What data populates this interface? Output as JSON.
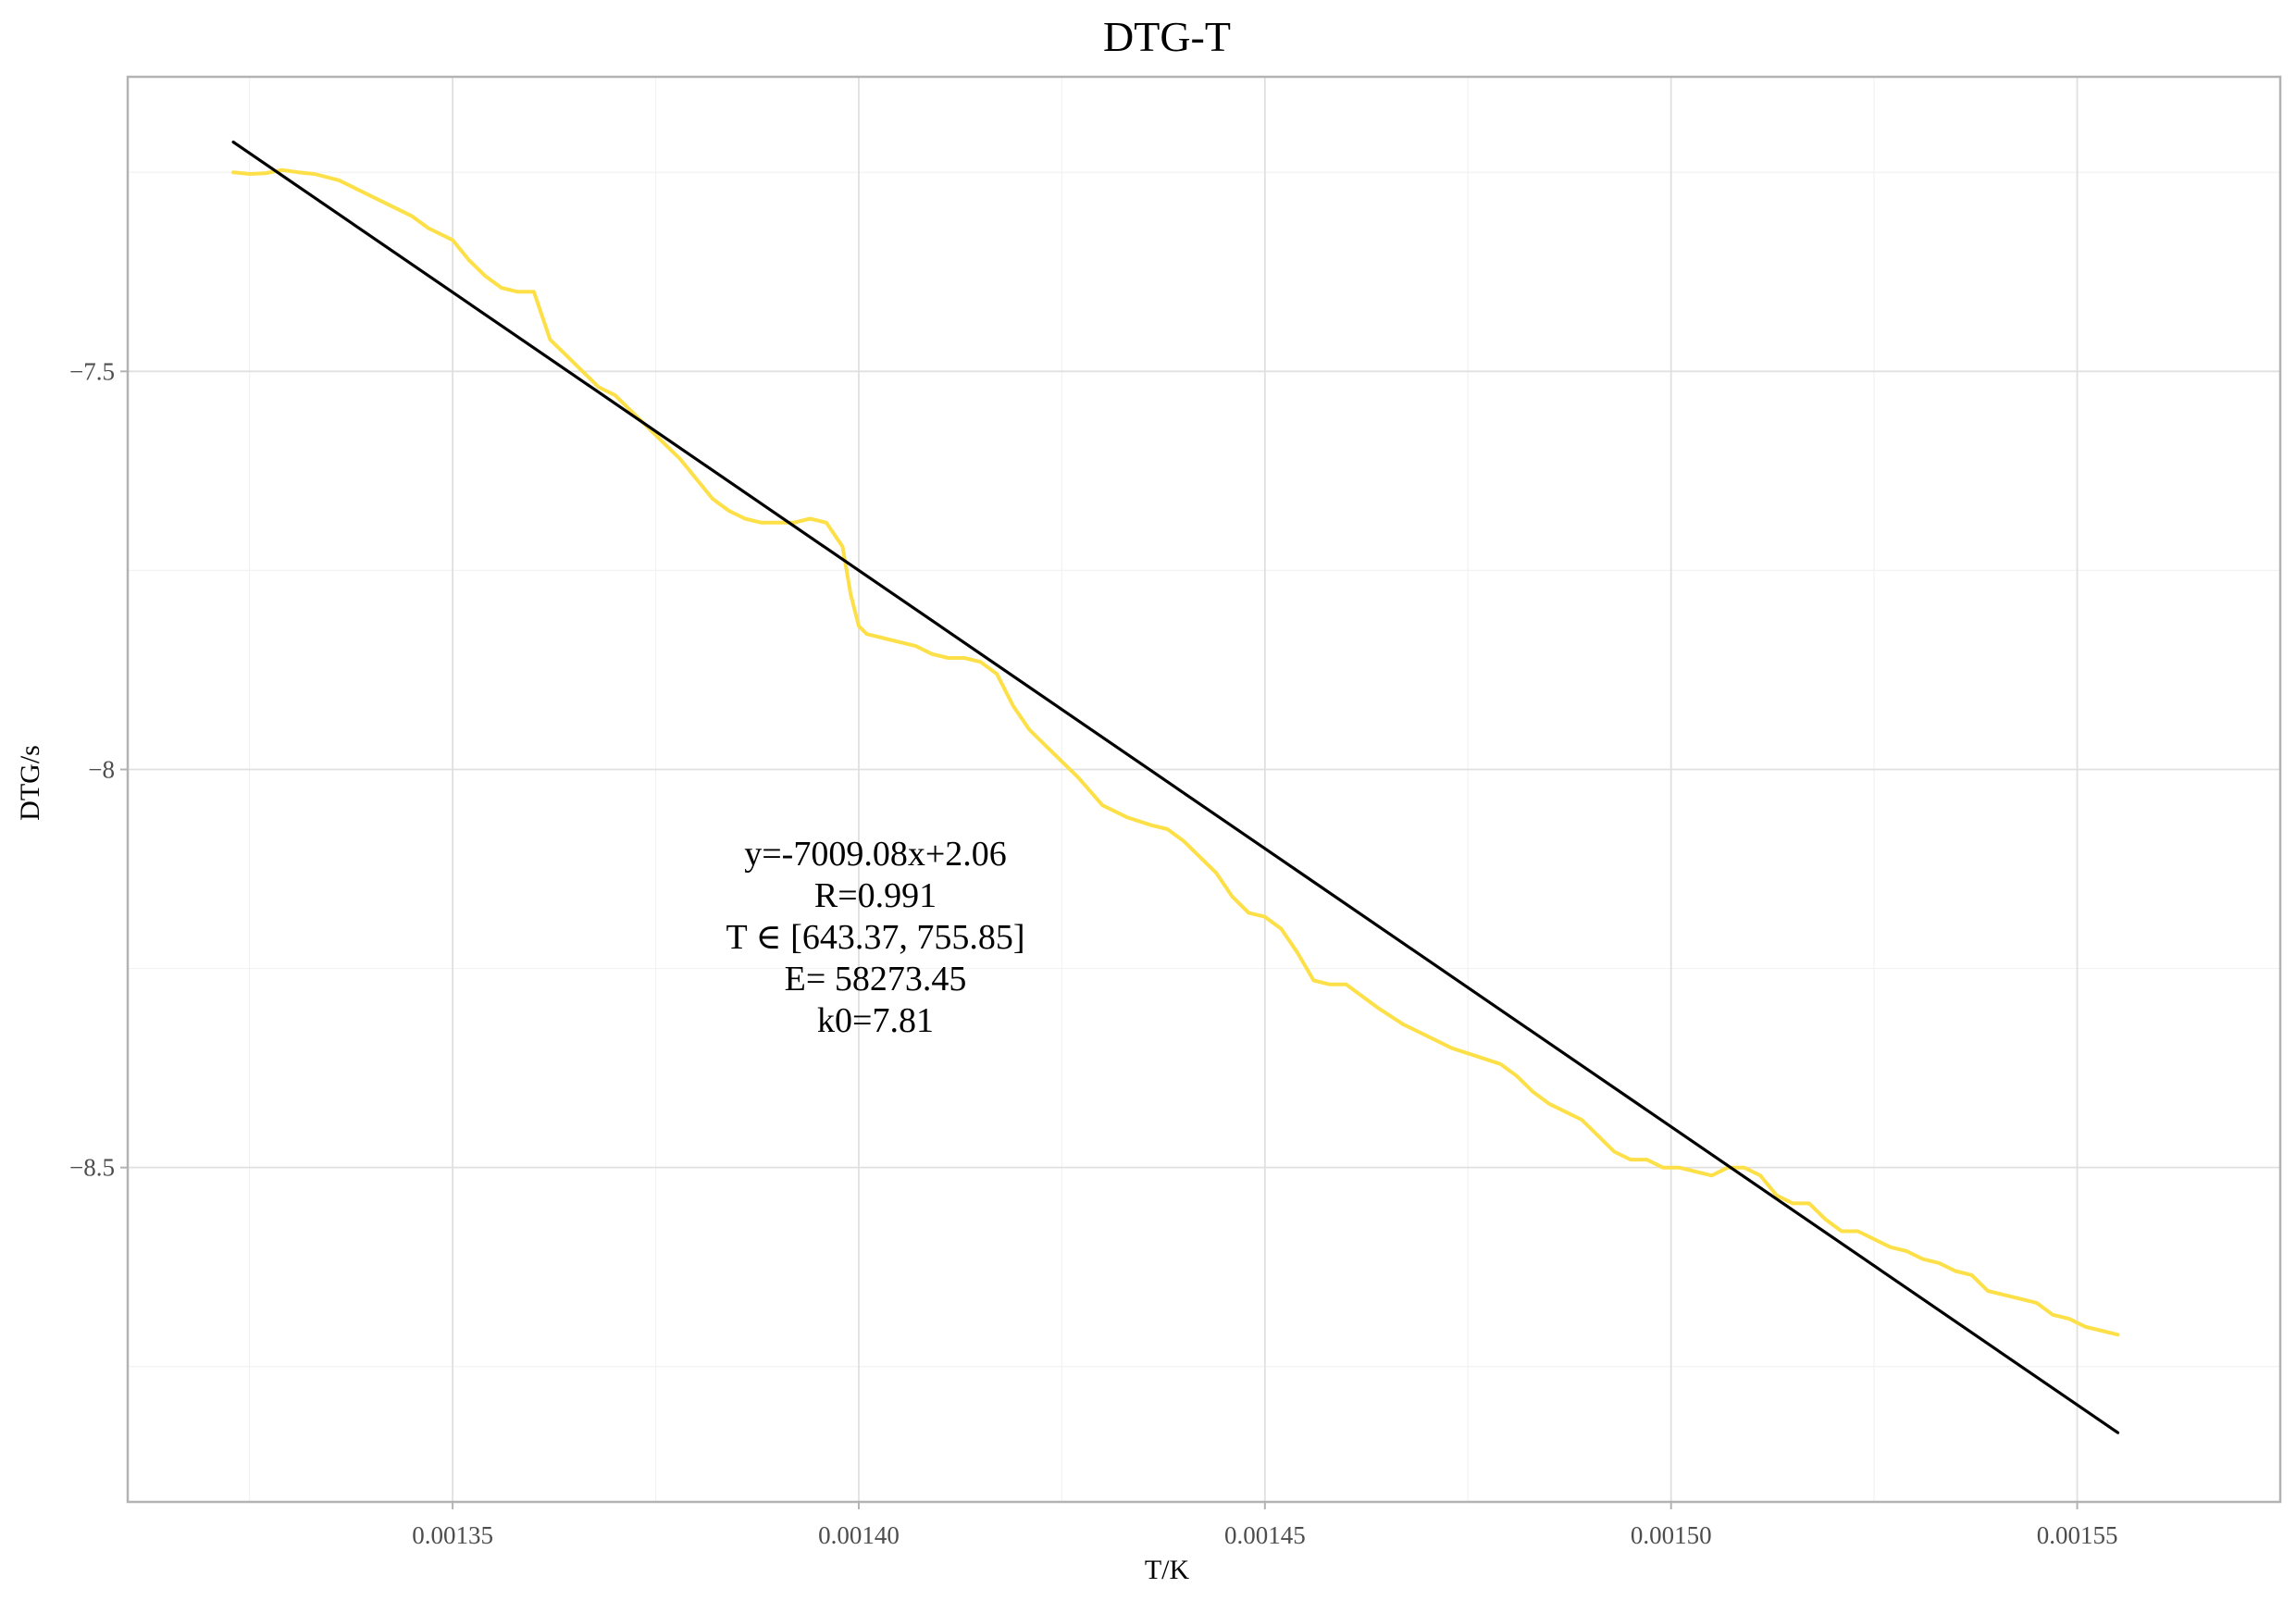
{
  "chart_data": {
    "type": "line",
    "title": "DTG-T",
    "xlabel": "T/K",
    "ylabel": "DTG/s",
    "xlim": [
      0.00131,
      0.001575
    ],
    "ylim": [
      -8.92,
      -7.13
    ],
    "x_ticks": [
      0.00135,
      0.0014,
      0.00145,
      0.0015,
      0.00155
    ],
    "x_tick_labels": [
      "0.00135",
      "0.00140",
      "0.00145",
      "0.00150",
      "0.00155"
    ],
    "y_ticks": [
      -8.5,
      -8,
      -7.5
    ],
    "y_tick_labels": [
      "−8.5",
      "−8",
      "−7.5"
    ],
    "grid": true,
    "series": [
      {
        "color": "#fde047",
        "x": [
          0.001323,
          0.001325,
          0.001327,
          0.001329,
          0.001331,
          0.001333,
          0.001336,
          0.001338,
          0.00134,
          0.001342,
          0.001345,
          0.001347,
          0.00135,
          0.001352,
          0.001354,
          0.001356,
          0.001358,
          0.00136,
          0.001362,
          0.001364,
          0.001366,
          0.001368,
          0.00137,
          0.001373,
          0.001376,
          0.001378,
          0.00138,
          0.001382,
          0.001384,
          0.001386,
          0.001388,
          0.00139,
          0.001392,
          0.001394,
          0.001396,
          0.001398,
          0.001399,
          0.0014,
          0.001401,
          0.001403,
          0.001405,
          0.001407,
          0.001409,
          0.001411,
          0.001413,
          0.001415,
          0.001417,
          0.001419,
          0.001421,
          0.001423,
          0.001425,
          0.001427,
          0.00143,
          0.001433,
          0.001436,
          0.001438,
          0.00144,
          0.001442,
          0.001444,
          0.001446,
          0.001448,
          0.00145,
          0.001452,
          0.001454,
          0.001456,
          0.001458,
          0.00146,
          0.001462,
          0.001464,
          0.001467,
          0.00147,
          0.001473,
          0.001476,
          0.001479,
          0.001481,
          0.001483,
          0.001485,
          0.001487,
          0.001489,
          0.001491,
          0.001493,
          0.001495,
          0.001497,
          0.001499,
          0.001501,
          0.001503,
          0.001505,
          0.001507,
          0.001509,
          0.001511,
          0.001513,
          0.001515,
          0.001517,
          0.001519,
          0.001521,
          0.001523,
          0.001525,
          0.001527,
          0.001529,
          0.001531,
          0.001533,
          0.001535,
          0.001537,
          0.001539,
          0.001541,
          0.001543,
          0.001545,
          0.001547,
          0.001549,
          0.001551,
          0.001553,
          0.001555
        ],
        "y": [
          -7.25,
          -7.252,
          -7.251,
          -7.247,
          -7.25,
          -7.252,
          -7.26,
          -7.27,
          -7.28,
          -7.29,
          -7.305,
          -7.32,
          -7.335,
          -7.36,
          -7.38,
          -7.395,
          -7.4,
          -7.4,
          -7.46,
          -7.48,
          -7.5,
          -7.52,
          -7.53,
          -7.56,
          -7.59,
          -7.61,
          -7.635,
          -7.66,
          -7.675,
          -7.685,
          -7.69,
          -7.69,
          -7.69,
          -7.685,
          -7.69,
          -7.72,
          -7.78,
          -7.82,
          -7.83,
          -7.835,
          -7.84,
          -7.845,
          -7.855,
          -7.86,
          -7.86,
          -7.865,
          -7.88,
          -7.92,
          -7.95,
          -7.97,
          -7.99,
          -8.01,
          -8.045,
          -8.06,
          -8.07,
          -8.075,
          -8.09,
          -8.11,
          -8.13,
          -8.16,
          -8.18,
          -8.185,
          -8.2,
          -8.23,
          -8.265,
          -8.27,
          -8.27,
          -8.285,
          -8.3,
          -8.32,
          -8.335,
          -8.35,
          -8.36,
          -8.37,
          -8.385,
          -8.405,
          -8.42,
          -8.43,
          -8.44,
          -8.46,
          -8.48,
          -8.49,
          -8.49,
          -8.5,
          -8.5,
          -8.505,
          -8.51,
          -8.5,
          -8.5,
          -8.51,
          -8.535,
          -8.545,
          -8.545,
          -8.565,
          -8.58,
          -8.58,
          -8.59,
          -8.6,
          -8.605,
          -8.615,
          -8.62,
          -8.63,
          -8.635,
          -8.655,
          -8.66,
          -8.665,
          -8.67,
          -8.685,
          -8.69,
          -8.7,
          -8.705,
          -8.71
        ]
      },
      {
        "color": "#000000",
        "x": [
          0.001323,
          0.001555
        ],
        "y": [
          -7.212,
          -8.833
        ]
      }
    ],
    "annotations": [
      "y=-7009.08x+2.06",
      "R=0.991",
      "T ∈ [643.37, 755.85]",
      "E= 58273.45",
      "k0=7.81"
    ]
  }
}
